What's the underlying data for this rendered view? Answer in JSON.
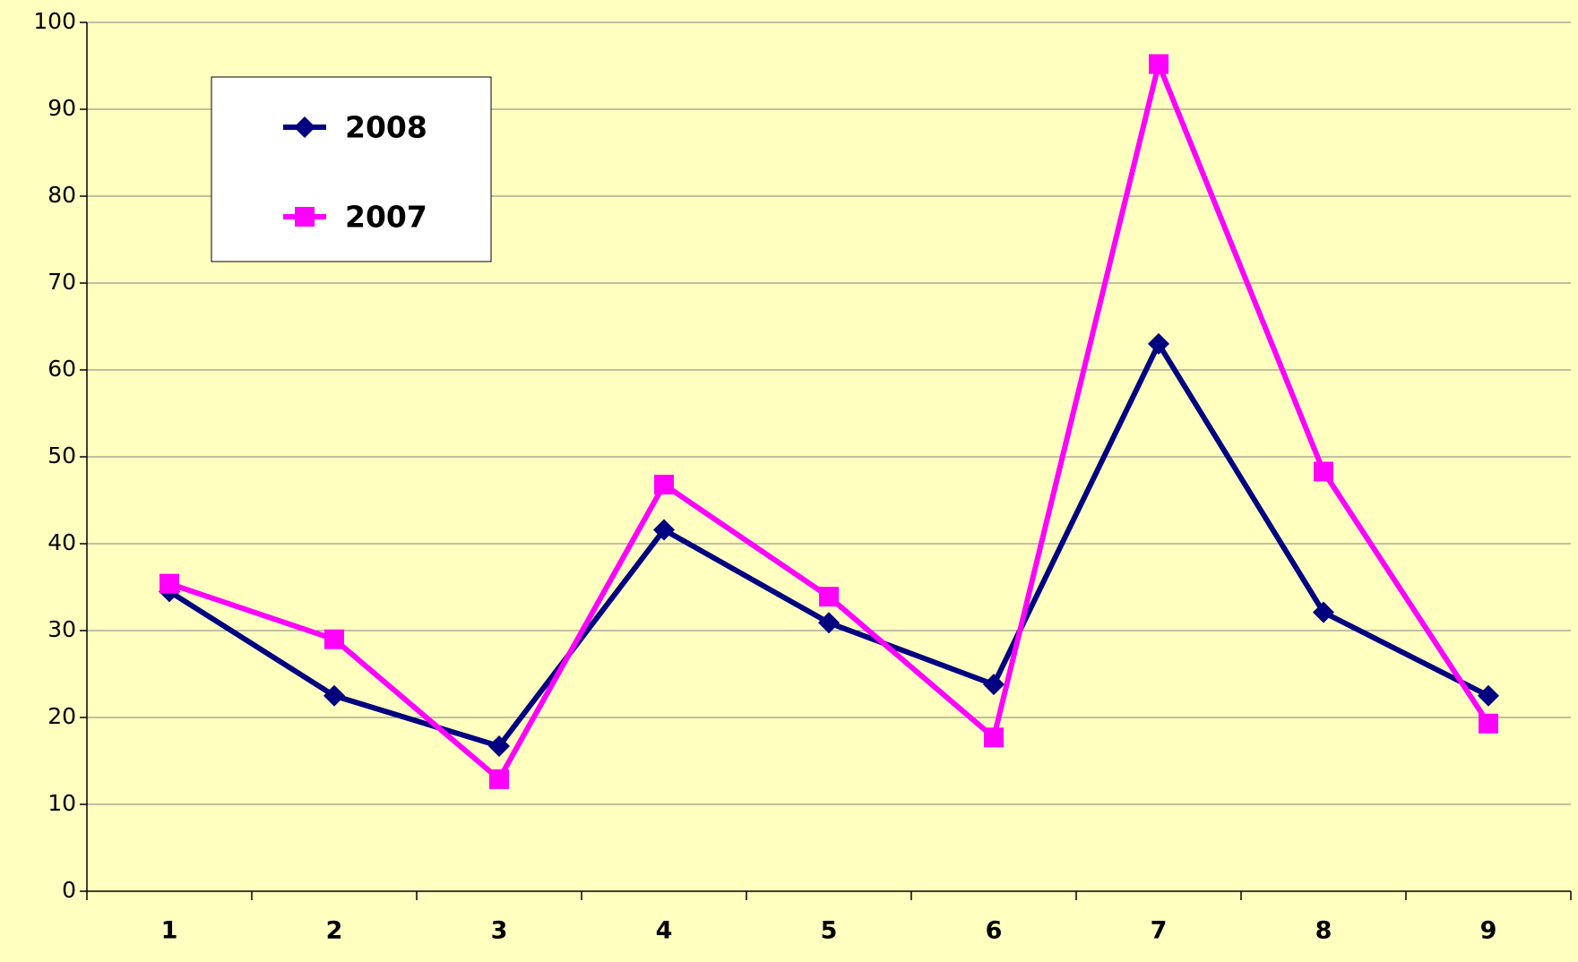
{
  "chart_data": {
    "type": "line",
    "categories": [
      "1",
      "2",
      "3",
      "4",
      "5",
      "6",
      "7",
      "8",
      "9"
    ],
    "series": [
      {
        "name": "2008",
        "color": "#000080",
        "marker": "diamond",
        "values": [
          34.5,
          22.5,
          16.7,
          41.6,
          30.9,
          23.8,
          63,
          32.1,
          22.5
        ]
      },
      {
        "name": "2007",
        "color": "#ff00ff",
        "marker": "square",
        "values": [
          35.4,
          29,
          12.9,
          46.8,
          33.9,
          17.7,
          95.2,
          48.3,
          19.3
        ]
      }
    ],
    "ylim": [
      0,
      100
    ],
    "yticks": [
      0,
      10,
      20,
      30,
      40,
      50,
      60,
      70,
      80,
      90,
      100
    ],
    "grid": true,
    "legend": "upper left"
  }
}
